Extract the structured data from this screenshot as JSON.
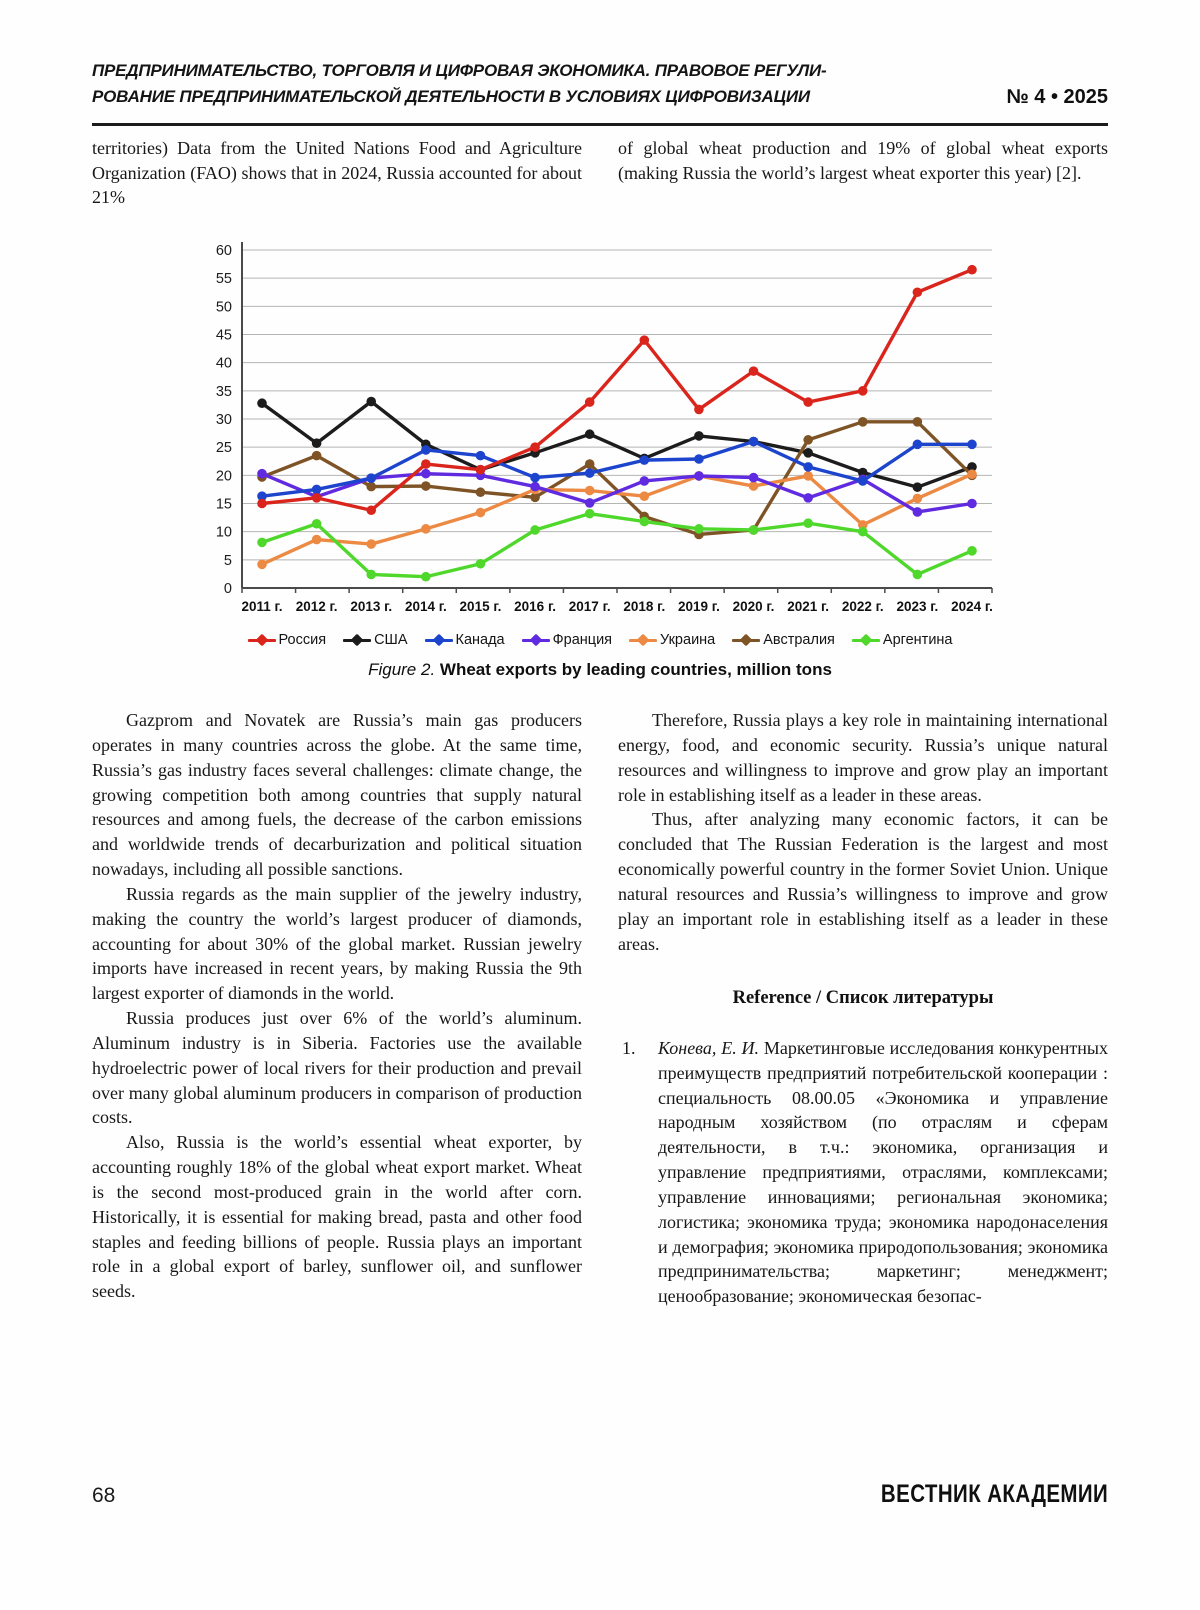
{
  "header": {
    "running_head_line1": "ПРЕДПРИНИМАТЕЛЬСТВО, ТОРГОВЛЯ И ЦИФРОВАЯ ЭКОНОМИКА. ПРАВОВОЕ РЕГУЛИ-",
    "running_head_line2": "РОВАНИЕ ПРЕДПРИНИМАТЕЛЬСКОЙ ДЕЯТЕЛЬНОСТИ В УСЛОВИЯХ ЦИФРОВИЗАЦИИ",
    "issue": "№ 4 • 2025"
  },
  "intro": {
    "left": "territories) Data from the United Nations Food and Agriculture Organization (FAO) shows that in 2024, Russia accounted for about 21%",
    "right": "of global wheat production and 19% of global wheat exports (making Russia the world’s largest wheat exporter this year) [2]."
  },
  "figure": {
    "caption_label": "Figure 2.",
    "caption_text": "Wheat exports by leading countries, million tons"
  },
  "chart_data": {
    "type": "line",
    "title": "",
    "xlabel": "",
    "ylabel": "",
    "ylim": [
      0,
      60
    ],
    "ytick_step": 5,
    "grid": true,
    "legend_position": "bottom",
    "categories": [
      "2011 г.",
      "2012 г.",
      "2013 г.",
      "2014 г.",
      "2015 г.",
      "2016 г.",
      "2017 г.",
      "2018 г.",
      "2019 г.",
      "2020 г.",
      "2021 г.",
      "2022 г.",
      "2023 г.",
      "2024 г."
    ],
    "series": [
      {
        "name": "Россия",
        "color": "#da251d",
        "values": [
          15,
          16,
          13.8,
          22,
          21,
          25,
          33,
          44,
          31.7,
          38.5,
          33,
          35,
          52.5,
          56.5
        ]
      },
      {
        "name": "США",
        "color": "#1c1c1c",
        "values": [
          32.8,
          25.7,
          33.1,
          25.5,
          21,
          24,
          27.3,
          23,
          27,
          26,
          24,
          20.5,
          17.9,
          21.5
        ]
      },
      {
        "name": "Канада",
        "color": "#1d44cc",
        "values": [
          16.3,
          17.5,
          19.5,
          24.5,
          23.5,
          19.6,
          20.4,
          22.7,
          22.9,
          26,
          21.5,
          19,
          25.5,
          25.5
        ]
      },
      {
        "name": "Франция",
        "color": "#5f2ae0",
        "values": [
          20.3,
          16.2,
          19.5,
          20.3,
          20,
          18,
          15.1,
          19,
          19.9,
          19.6,
          16,
          19.3,
          13.5,
          15
        ]
      },
      {
        "name": "Украина",
        "color": "#ec8a44",
        "values": [
          4.2,
          8.6,
          7.8,
          10.5,
          13.4,
          17.5,
          17.3,
          16.3,
          19.9,
          18.1,
          19.9,
          11.2,
          15.9,
          20.2
        ]
      },
      {
        "name": "Австралия",
        "color": "#7e5426",
        "values": [
          19.7,
          23.5,
          18,
          18.1,
          17,
          16.1,
          22,
          12.7,
          9.5,
          10.3,
          26.3,
          29.5,
          29.5,
          20
        ]
      },
      {
        "name": "Аргентина",
        "color": "#4fd82b",
        "values": [
          8.1,
          11.4,
          2.4,
          2,
          4.3,
          10.3,
          13.2,
          11.8,
          10.5,
          10.3,
          11.5,
          10,
          2.4,
          6.6
        ]
      }
    ]
  },
  "body": {
    "left_paragraphs": [
      "Gazprom and Novatek are Russia’s main gas producers operates in many countries across the globe. At the same time, Russia’s gas industry faces several challenges: climate change, the growing competition both among countries that supply natural resources and among fuels, the decrease of the carbon emissions and worldwide trends of decarburization and political situation nowadays, including all possible sanctions.",
      "Russia regards as the main supplier of the jewelry industry, making the country the world’s largest producer of diamonds, accounting for about 30% of the global market. Russian jewelry imports have increased in recent years, by making Russia the 9th largest exporter of diamonds in the world.",
      "Russia produces just over 6% of the world’s aluminum. Aluminum industry is in Siberia. Factories use the available hydroelectric power of local rivers for their production and prevail over many global aluminum producers in comparison of production costs.",
      "Also, Russia is the world’s essential wheat exporter, by accounting roughly 18% of the global wheat export market. Wheat is the second most-produced grain in the world after corn. Historically, it is essential for making bread, pasta and other food staples and feeding billions of people. Russia plays an important role in a global export of barley, sunflower oil, and sunflower seeds."
    ],
    "right_paragraphs": [
      "Therefore, Russia plays a key role in maintaining international energy, food, and economic security. Russia’s unique natural resources and willingness to improve and grow play an important role in establishing itself as a leader in these areas.",
      "Thus, after analyzing many economic factors, it can be concluded that The Russian Federation is the largest and most economically powerful country in the former Soviet Union. Unique natural resources and Russia’s willingness to improve and grow play an important role in establishing itself as a leader in these areas."
    ]
  },
  "references": {
    "heading": "Reference / Список литературы",
    "items": [
      {
        "number": "1.",
        "author": "Конева, Е. И.",
        "text": "Маркетинговые исследования конкурентных преимуществ предприятий потребительской кооперации : специальность 08.00.05 «Экономика и управление народным хозяйством (по отраслям и сферам деятельности, в т.ч.: экономика, организация и управление предприятиями, отраслями, комплексами; управление инновациями; региональная экономика; логистика; экономика труда; экономика народонаселения и демография; экономика природопользования; экономика предпринимательства; маркетинг; менеджмент; ценообразование; экономическая безопас-"
      }
    ]
  },
  "footer": {
    "page_number": "68",
    "journal": "ВЕСТНИК АКАДЕМИИ"
  }
}
